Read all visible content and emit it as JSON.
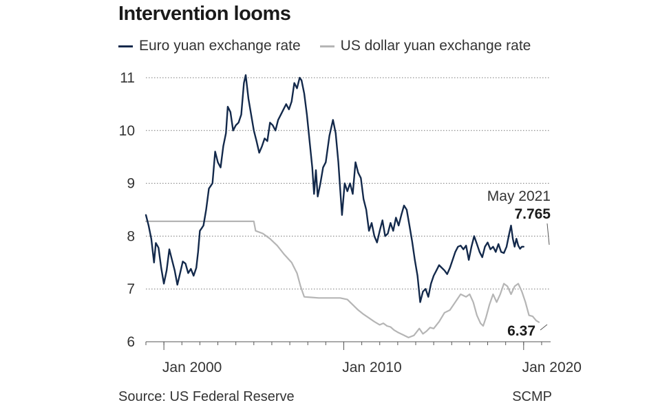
{
  "title": "Intervention looms",
  "source": "Source: US Federal Reserve",
  "credit": "SCMP",
  "colors": {
    "euro": "#13294b",
    "usd": "#b5b5b5",
    "grid": "#777777",
    "axis": "#555555"
  },
  "chart_data": {
    "type": "line",
    "title": "Intervention looms",
    "xlabel": "",
    "ylabel": "",
    "ylim": [
      6,
      11
    ],
    "xlim": [
      1999.0,
      2021.5
    ],
    "yticks": [
      6,
      7,
      8,
      9,
      10,
      11
    ],
    "xticks": [
      {
        "value": 2000.0,
        "label": "Jan 2000"
      },
      {
        "value": 2010.0,
        "label": "Jan 2010"
      },
      {
        "value": 2020.0,
        "label": "Jan 2020"
      }
    ],
    "grid": true,
    "legend_position": "top-left",
    "series": [
      {
        "name": "Euro yuan exchange rate",
        "color": "#13294b",
        "points": [
          [
            1999.0,
            8.4
          ],
          [
            1999.15,
            8.2
          ],
          [
            1999.3,
            7.95
          ],
          [
            1999.45,
            7.5
          ],
          [
            1999.55,
            7.87
          ],
          [
            1999.7,
            7.78
          ],
          [
            1999.85,
            7.4
          ],
          [
            2000.0,
            7.1
          ],
          [
            2000.15,
            7.35
          ],
          [
            2000.3,
            7.75
          ],
          [
            2000.45,
            7.55
          ],
          [
            2000.6,
            7.35
          ],
          [
            2000.75,
            7.08
          ],
          [
            2000.9,
            7.3
          ],
          [
            2001.05,
            7.52
          ],
          [
            2001.2,
            7.48
          ],
          [
            2001.35,
            7.3
          ],
          [
            2001.5,
            7.38
          ],
          [
            2001.65,
            7.25
          ],
          [
            2001.8,
            7.4
          ],
          [
            2001.9,
            7.7
          ],
          [
            2002.0,
            8.1
          ],
          [
            2002.1,
            8.15
          ],
          [
            2002.2,
            8.2
          ],
          [
            2002.35,
            8.5
          ],
          [
            2002.5,
            8.9
          ],
          [
            2002.7,
            9.0
          ],
          [
            2002.85,
            9.6
          ],
          [
            2003.0,
            9.4
          ],
          [
            2003.15,
            9.3
          ],
          [
            2003.3,
            9.7
          ],
          [
            2003.45,
            9.95
          ],
          [
            2003.55,
            10.45
          ],
          [
            2003.7,
            10.35
          ],
          [
            2003.85,
            10.0
          ],
          [
            2004.0,
            10.1
          ],
          [
            2004.15,
            10.15
          ],
          [
            2004.3,
            10.3
          ],
          [
            2004.45,
            10.9
          ],
          [
            2004.55,
            11.05
          ],
          [
            2004.7,
            10.6
          ],
          [
            2004.85,
            10.3
          ],
          [
            2005.0,
            10.0
          ],
          [
            2005.15,
            9.8
          ],
          [
            2005.3,
            9.58
          ],
          [
            2005.45,
            9.7
          ],
          [
            2005.6,
            9.85
          ],
          [
            2005.75,
            9.8
          ],
          [
            2005.9,
            10.15
          ],
          [
            2006.05,
            10.1
          ],
          [
            2006.2,
            10.0
          ],
          [
            2006.35,
            10.2
          ],
          [
            2006.5,
            10.3
          ],
          [
            2006.65,
            10.4
          ],
          [
            2006.8,
            10.5
          ],
          [
            2006.95,
            10.4
          ],
          [
            2007.1,
            10.55
          ],
          [
            2007.25,
            10.9
          ],
          [
            2007.4,
            10.8
          ],
          [
            2007.55,
            11.0
          ],
          [
            2007.65,
            10.95
          ],
          [
            2007.8,
            10.7
          ],
          [
            2007.95,
            10.3
          ],
          [
            2008.1,
            9.8
          ],
          [
            2008.25,
            9.3
          ],
          [
            2008.35,
            8.8
          ],
          [
            2008.45,
            9.25
          ],
          [
            2008.55,
            8.75
          ],
          [
            2008.7,
            9.0
          ],
          [
            2008.85,
            9.3
          ],
          [
            2009.0,
            9.4
          ],
          [
            2009.2,
            9.9
          ],
          [
            2009.4,
            10.2
          ],
          [
            2009.55,
            9.95
          ],
          [
            2009.7,
            9.4
          ],
          [
            2009.8,
            8.9
          ],
          [
            2009.9,
            8.4
          ],
          [
            2010.05,
            9.0
          ],
          [
            2010.2,
            8.85
          ],
          [
            2010.35,
            9.0
          ],
          [
            2010.5,
            8.8
          ],
          [
            2010.65,
            9.4
          ],
          [
            2010.8,
            9.2
          ],
          [
            2010.95,
            9.1
          ],
          [
            2011.1,
            8.7
          ],
          [
            2011.25,
            8.5
          ],
          [
            2011.4,
            8.1
          ],
          [
            2011.55,
            8.25
          ],
          [
            2011.7,
            8.0
          ],
          [
            2011.85,
            7.88
          ],
          [
            2012.0,
            8.1
          ],
          [
            2012.15,
            8.3
          ],
          [
            2012.3,
            8.0
          ],
          [
            2012.45,
            8.05
          ],
          [
            2012.6,
            8.25
          ],
          [
            2012.75,
            8.1
          ],
          [
            2012.9,
            8.35
          ],
          [
            2013.05,
            8.2
          ],
          [
            2013.2,
            8.4
          ],
          [
            2013.35,
            8.58
          ],
          [
            2013.5,
            8.5
          ],
          [
            2013.65,
            8.2
          ],
          [
            2013.8,
            7.9
          ],
          [
            2013.95,
            7.55
          ],
          [
            2014.1,
            7.25
          ],
          [
            2014.25,
            6.75
          ],
          [
            2014.4,
            6.95
          ],
          [
            2014.55,
            7.0
          ],
          [
            2014.7,
            6.85
          ],
          [
            2014.85,
            7.1
          ],
          [
            2015.0,
            7.25
          ],
          [
            2015.15,
            7.35
          ],
          [
            2015.3,
            7.45
          ],
          [
            2015.45,
            7.4
          ],
          [
            2015.6,
            7.35
          ],
          [
            2015.75,
            7.28
          ],
          [
            2015.9,
            7.4
          ],
          [
            2016.05,
            7.55
          ],
          [
            2016.2,
            7.7
          ],
          [
            2016.35,
            7.8
          ],
          [
            2016.5,
            7.82
          ],
          [
            2016.65,
            7.75
          ],
          [
            2016.8,
            7.82
          ],
          [
            2016.95,
            7.55
          ],
          [
            2017.1,
            7.8
          ],
          [
            2017.25,
            8.0
          ],
          [
            2017.4,
            7.85
          ],
          [
            2017.55,
            7.7
          ],
          [
            2017.7,
            7.6
          ],
          [
            2017.85,
            7.8
          ],
          [
            2018.0,
            7.88
          ],
          [
            2018.15,
            7.75
          ],
          [
            2018.3,
            7.8
          ],
          [
            2018.45,
            7.7
          ],
          [
            2018.6,
            7.85
          ],
          [
            2018.75,
            7.7
          ],
          [
            2018.9,
            7.68
          ],
          [
            2019.05,
            7.8
          ],
          [
            2019.2,
            8.05
          ],
          [
            2019.3,
            8.2
          ],
          [
            2019.4,
            7.95
          ],
          [
            2019.5,
            7.8
          ],
          [
            2019.6,
            7.95
          ],
          [
            2019.7,
            7.82
          ],
          [
            2019.8,
            7.76
          ],
          [
            2019.9,
            7.8
          ],
          [
            2020.0,
            7.8
          ]
        ]
      },
      {
        "name": "US dollar yuan exchange rate",
        "color": "#b5b5b5",
        "points": [
          [
            1999.0,
            8.28
          ],
          [
            2000.0,
            8.28
          ],
          [
            2001.0,
            8.28
          ],
          [
            2002.0,
            8.28
          ],
          [
            2003.0,
            8.28
          ],
          [
            2004.0,
            8.28
          ],
          [
            2005.0,
            8.28
          ],
          [
            2005.1,
            8.1
          ],
          [
            2005.5,
            8.05
          ],
          [
            2005.9,
            7.95
          ],
          [
            2006.3,
            7.82
          ],
          [
            2006.7,
            7.65
          ],
          [
            2007.1,
            7.5
          ],
          [
            2007.4,
            7.3
          ],
          [
            2007.6,
            7.05
          ],
          [
            2007.8,
            6.85
          ],
          [
            2008.2,
            6.84
          ],
          [
            2008.6,
            6.83
          ],
          [
            2009.0,
            6.83
          ],
          [
            2009.4,
            6.83
          ],
          [
            2009.8,
            6.83
          ],
          [
            2010.2,
            6.8
          ],
          [
            2010.5,
            6.7
          ],
          [
            2010.8,
            6.6
          ],
          [
            2011.1,
            6.52
          ],
          [
            2011.4,
            6.45
          ],
          [
            2011.7,
            6.38
          ],
          [
            2012.0,
            6.32
          ],
          [
            2012.2,
            6.35
          ],
          [
            2012.4,
            6.3
          ],
          [
            2012.6,
            6.28
          ],
          [
            2012.8,
            6.22
          ],
          [
            2013.0,
            6.18
          ],
          [
            2013.3,
            6.13
          ],
          [
            2013.6,
            6.08
          ],
          [
            2013.9,
            6.12
          ],
          [
            2014.2,
            6.25
          ],
          [
            2014.4,
            6.15
          ],
          [
            2014.6,
            6.2
          ],
          [
            2014.8,
            6.27
          ],
          [
            2015.0,
            6.25
          ],
          [
            2015.3,
            6.38
          ],
          [
            2015.6,
            6.55
          ],
          [
            2015.9,
            6.6
          ],
          [
            2016.2,
            6.75
          ],
          [
            2016.5,
            6.9
          ],
          [
            2016.8,
            6.85
          ],
          [
            2017.0,
            6.9
          ],
          [
            2017.2,
            6.75
          ],
          [
            2017.4,
            6.5
          ],
          [
            2017.6,
            6.35
          ],
          [
            2017.75,
            6.3
          ],
          [
            2017.9,
            6.45
          ],
          [
            2018.1,
            6.7
          ],
          [
            2018.3,
            6.9
          ],
          [
            2018.5,
            6.75
          ],
          [
            2018.7,
            6.9
          ],
          [
            2018.9,
            7.1
          ],
          [
            2019.1,
            7.05
          ],
          [
            2019.3,
            6.9
          ],
          [
            2019.5,
            7.05
          ],
          [
            2019.7,
            7.1
          ],
          [
            2019.9,
            6.95
          ],
          [
            2020.1,
            6.75
          ],
          [
            2020.3,
            6.5
          ],
          [
            2020.5,
            6.48
          ],
          [
            2020.7,
            6.4
          ],
          [
            2020.85,
            6.37
          ]
        ]
      }
    ],
    "annotations": {
      "date_label": "May 2021",
      "euro_value": "7.765",
      "usd_value": "6.37"
    }
  }
}
